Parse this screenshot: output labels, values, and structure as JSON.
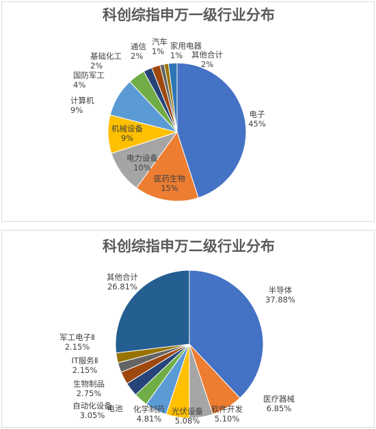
{
  "chart_data": [
    {
      "type": "pie",
      "title": "科创综指申万一级行业分布",
      "slices": [
        {
          "label": "电子",
          "value_text": "45%",
          "value": 45,
          "color": "#4472C4"
        },
        {
          "label": "医药生物",
          "value_text": "15%",
          "value": 15,
          "color": "#ED7D31"
        },
        {
          "label": "电力设备",
          "value_text": "10%",
          "value": 10,
          "color": "#A5A5A5"
        },
        {
          "label": "机械设备",
          "value_text": "9%",
          "value": 9,
          "color": "#FFC000"
        },
        {
          "label": "计算机",
          "value_text": "9%",
          "value": 9,
          "color": "#5B9BD5"
        },
        {
          "label": "国防军工",
          "value_text": "4%",
          "value": 4,
          "color": "#70AD47"
        },
        {
          "label": "基础化工",
          "value_text": "2%",
          "value": 2,
          "color": "#264478"
        },
        {
          "label": "通信",
          "value_text": "2%",
          "value": 2,
          "color": "#9E480E"
        },
        {
          "label": "汽车",
          "value_text": "1%",
          "value": 1,
          "color": "#636363"
        },
        {
          "label": "家用电器",
          "value_text": "1%",
          "value": 1,
          "color": "#997300"
        },
        {
          "label": "其他合计",
          "value_text": "2%",
          "value": 2,
          "color": "#2E75B6"
        }
      ]
    },
    {
      "type": "pie",
      "title": "科创综指申万二级行业分布",
      "slices": [
        {
          "label": "半导体",
          "value_text": "37.88%",
          "value": 37.88,
          "color": "#4472C4"
        },
        {
          "label": "医疗器械",
          "value_text": "6.85%",
          "value": 6.85,
          "color": "#ED7D31"
        },
        {
          "label": "软件开发",
          "value_text": "5.10%",
          "value": 5.1,
          "color": "#A5A5A5"
        },
        {
          "label": "光伏设备",
          "value_text": "5.08%",
          "value": 5.08,
          "color": "#FFC000"
        },
        {
          "label": "化学制药",
          "value_text": "4.81%",
          "value": 4.81,
          "color": "#5B9BD5"
        },
        {
          "label": "电池",
          "value_text": "",
          "value": 3.05,
          "color": "#70AD47"
        },
        {
          "label": "自动化设备",
          "value_text": "3.05%",
          "value": 3.05,
          "color": "#264478"
        },
        {
          "label": "生物制品",
          "value_text": "2.75%",
          "value": 2.75,
          "color": "#9E480E"
        },
        {
          "label": "IT服务Ⅱ",
          "value_text": "2.15%",
          "value": 2.15,
          "color": "#636363"
        },
        {
          "label": "军工电子Ⅱ",
          "value_text": "2.15%",
          "value": 2.15,
          "color": "#997300"
        },
        {
          "label": "其他合计",
          "value_text": "26.81%",
          "value": 26.81,
          "color": "#255E91"
        }
      ]
    }
  ]
}
